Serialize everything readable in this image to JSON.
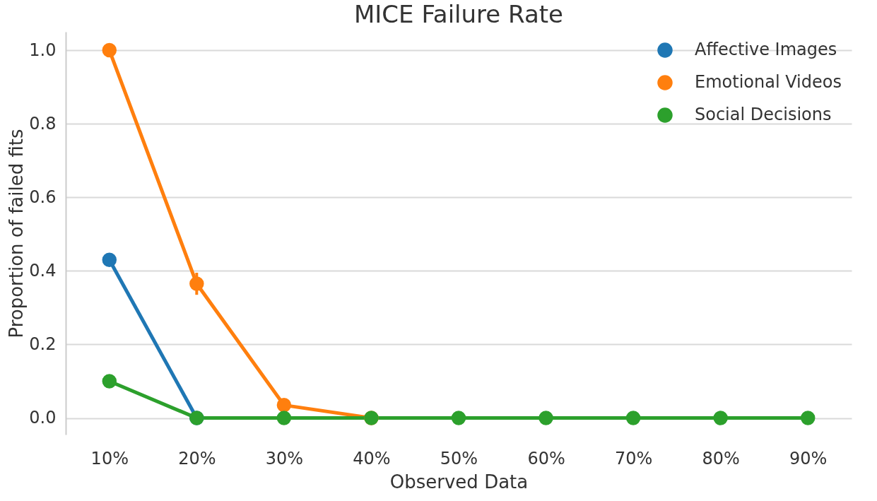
{
  "chart_data": {
    "type": "line",
    "title": "MICE Failure Rate",
    "xlabel": "Observed Data",
    "ylabel": "Proportion of failed fits",
    "categories": [
      "10%",
      "20%",
      "30%",
      "40%",
      "50%",
      "60%",
      "70%",
      "80%",
      "90%"
    ],
    "series": [
      {
        "name": "Affective Images",
        "color": "#1f77b4",
        "values": [
          0.43,
          0,
          null,
          null,
          null,
          null,
          null,
          null,
          null
        ]
      },
      {
        "name": "Emotional Videos",
        "color": "#ff7f0e",
        "values": [
          1.0,
          0.365,
          0.035,
          0,
          null,
          null,
          null,
          null,
          null
        ],
        "errors": [
          null,
          [
            0.335,
            0.395
          ],
          null,
          null,
          null,
          null,
          null,
          null,
          null
        ]
      },
      {
        "name": "Social Decisions",
        "color": "#2ca02c",
        "values": [
          0.1,
          0,
          0,
          0,
          0,
          0,
          0,
          0,
          0
        ]
      }
    ],
    "ylim": [
      -0.045,
      1.05
    ],
    "yticks": [
      {
        "value": 0,
        "label": "0.0"
      },
      {
        "value": 0.2,
        "label": "0.2"
      },
      {
        "value": 0.4,
        "label": "0.4"
      },
      {
        "value": 0.6,
        "label": "0.6"
      },
      {
        "value": 0.8,
        "label": "0.8"
      },
      {
        "value": 1,
        "label": "1.0"
      }
    ],
    "grid": "y",
    "legend": "top right",
    "marker": "circle",
    "line_style": "solid"
  }
}
